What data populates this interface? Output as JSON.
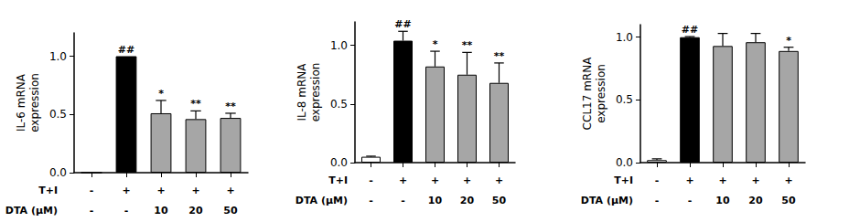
{
  "chart_data": [
    {
      "type": "bar",
      "y_label": "IL-6 mRNA\nexpression",
      "row_labels": [
        "T+I",
        "DTA (μM)"
      ],
      "categories": [
        "-\n-",
        "+\n-",
        "+\n10",
        "+\n20",
        "+\n50"
      ],
      "values": [
        0,
        1.0,
        0.51,
        0.46,
        0.47
      ],
      "errors": [
        0,
        0,
        0.11,
        0.07,
        0.04
      ],
      "annotations": [
        null,
        "##",
        "*",
        "**",
        "**"
      ],
      "colors": [
        "#ffffff",
        "#000000",
        "#a6a6a6",
        "#a6a6a6",
        "#a6a6a6"
      ],
      "ylim": [
        0,
        1.2
      ],
      "yticks": [
        {
          "value": 0,
          "label": "0.0"
        },
        {
          "value": 0.5,
          "label": "0.5"
        },
        {
          "value": 1,
          "label": "1.0"
        }
      ]
    },
    {
      "type": "bar",
      "y_label": "IL-8 mRNA\nexpression",
      "row_labels": [
        "T+I",
        "DTA (μM)"
      ],
      "categories": [
        "-\n-",
        "+\n-",
        "+\n10",
        "+\n20",
        "+\n50"
      ],
      "values": [
        0.05,
        1.04,
        0.82,
        0.75,
        0.68
      ],
      "errors": [
        0.005,
        0.08,
        0.13,
        0.19,
        0.17
      ],
      "annotations": [
        null,
        "##",
        "*",
        "**",
        "**"
      ],
      "colors": [
        "#ffffff",
        "#000000",
        "#a6a6a6",
        "#a6a6a6",
        "#a6a6a6"
      ],
      "ylim": [
        0,
        1.2
      ],
      "yticks": [
        {
          "value": 0,
          "label": "0.0"
        },
        {
          "value": 0.5,
          "label": "0.5"
        },
        {
          "value": 1,
          "label": "1.0"
        }
      ]
    },
    {
      "type": "bar",
      "y_label": "CCL17 mRNA\nexpression",
      "row_labels": [
        "T+I",
        "DTA (μM)"
      ],
      "categories": [
        "-\n-",
        "+\n-",
        "+\n10",
        "+\n20",
        "+\n50"
      ],
      "values": [
        0.02,
        1.0,
        0.93,
        0.96,
        0.89
      ],
      "errors": [
        0.01,
        0.005,
        0.1,
        0.07,
        0.03
      ],
      "annotations": [
        null,
        "##",
        null,
        null,
        "*"
      ],
      "colors": [
        "#ffffff",
        "#000000",
        "#a6a6a6",
        "#a6a6a6",
        "#a6a6a6"
      ],
      "ylim": [
        0,
        1.1
      ],
      "yticks": [
        {
          "value": 0,
          "label": "0.0"
        },
        {
          "value": 0.5,
          "label": "0.5"
        },
        {
          "value": 1,
          "label": "1.0"
        }
      ]
    }
  ]
}
